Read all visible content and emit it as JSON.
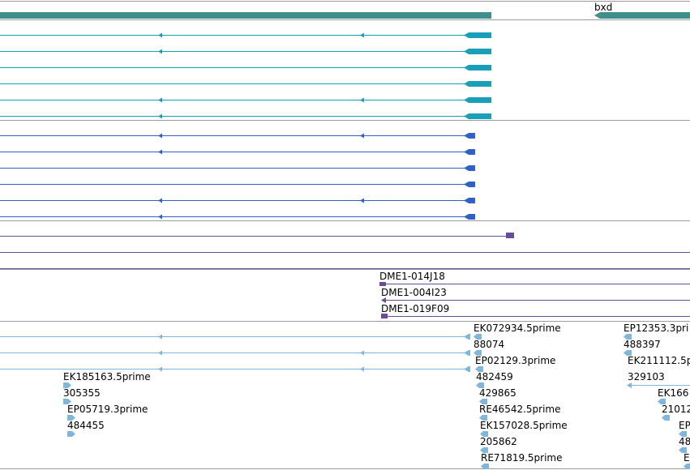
{
  "colors": {
    "gene": "#3f8f8c",
    "transcript_a": "#1a9fb8",
    "transcript_b": "#2f62c8",
    "clone": "#6a4c9c",
    "est": "#7fb6d9",
    "divider": "#9a9a9a",
    "label": "#000000"
  },
  "gene": {
    "label": "bxd"
  },
  "clone_labels": [
    "DME1-014J18",
    "DME1-004I23",
    "DME1-019F09"
  ],
  "est_labels": [
    "EK072934.5prime",
    "88074",
    "EP02129.3prime",
    "482459",
    "429865",
    "RE46542.5prime",
    "EK157028.5prime",
    "205862",
    "RE71819.5prime",
    "EP12353.3pri",
    "488397",
    "EK211112.5p",
    "329103",
    "EK166",
    "21012",
    "EP",
    "48",
    "E",
    "EK185163.5prime",
    "305355",
    "EP05719.3prime",
    "484455"
  ]
}
